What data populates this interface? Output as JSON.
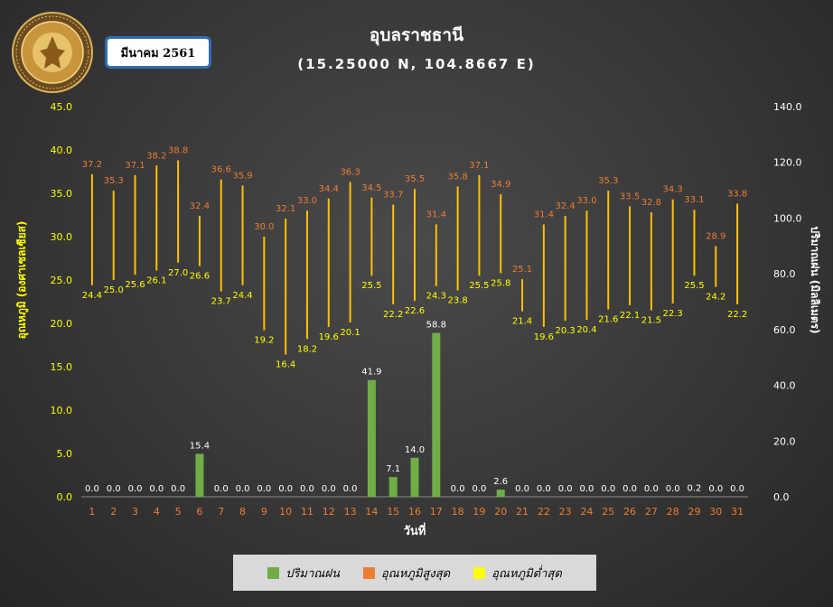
{
  "header": {
    "month_label": "มีนาคม 2561",
    "title": "อุบลราชธานี",
    "subtitle": "(15.25000 N, 104.8667 E)",
    "logo_text": "METEOROLOGICAL DEPARTMENT"
  },
  "colors": {
    "rain": "#70ad47",
    "tmax_label": "#ed7d31",
    "tmin_label": "#ffff00",
    "range_line": "#ffc000",
    "left_axis_text": "#ffff00",
    "right_axis_text": "#ffffff",
    "day_label": "#ed7d31"
  },
  "chart_data": {
    "type": "bar",
    "xlabel": "วันที่",
    "ylabel_left": "อุณหภูมิ (องศาเซลเซียส)",
    "ylabel_right": "ปริมาณฝน (มิลลิเมตร)",
    "ylim_left": [
      0,
      45
    ],
    "ylim_right": [
      0,
      140
    ],
    "yticks_left": [
      "0.0",
      "5.0",
      "10.0",
      "15.0",
      "20.0",
      "25.0",
      "30.0",
      "35.0",
      "40.0",
      "45.0"
    ],
    "yticks_right": [
      "0.0",
      "20.0",
      "40.0",
      "60.0",
      "80.0",
      "100.0",
      "120.0",
      "140.0"
    ],
    "grid": false,
    "legend_position": "bottom",
    "categories": [
      "1",
      "2",
      "3",
      "4",
      "5",
      "6",
      "7",
      "8",
      "9",
      "10",
      "11",
      "12",
      "13",
      "14",
      "15",
      "16",
      "17",
      "18",
      "19",
      "20",
      "21",
      "22",
      "23",
      "24",
      "25",
      "26",
      "27",
      "28",
      "29",
      "30",
      "31"
    ],
    "series": [
      {
        "name": "ปริมาณฝน",
        "axis": "right",
        "values": [
          0.0,
          0.0,
          0.0,
          0.0,
          0.0,
          15.4,
          0.0,
          0.0,
          0.0,
          0.0,
          0.0,
          0.0,
          0.0,
          41.9,
          7.1,
          14.0,
          58.8,
          0.0,
          0.0,
          2.6,
          0.0,
          0.0,
          0.0,
          0.0,
          0.0,
          0.0,
          0.0,
          0.0,
          0.2,
          0.0,
          0.0
        ]
      },
      {
        "name": "อุณหภูมิสูงสุด",
        "axis": "left",
        "values": [
          37.2,
          35.3,
          37.1,
          38.2,
          38.8,
          32.4,
          36.6,
          35.9,
          30.0,
          32.1,
          33.0,
          34.4,
          36.3,
          34.5,
          33.7,
          35.5,
          31.4,
          35.8,
          37.1,
          34.9,
          25.1,
          31.4,
          32.4,
          33.0,
          35.3,
          33.5,
          32.8,
          34.3,
          33.1,
          28.9,
          33.8
        ]
      },
      {
        "name": "อุณหภูมิต่ำสุด",
        "axis": "left",
        "values": [
          24.4,
          25.0,
          25.6,
          26.1,
          27.0,
          26.6,
          23.7,
          24.4,
          19.2,
          16.4,
          18.2,
          19.6,
          20.1,
          25.5,
          22.2,
          22.6,
          24.3,
          23.8,
          25.5,
          25.8,
          21.4,
          19.6,
          20.3,
          20.4,
          21.6,
          22.1,
          21.5,
          22.3,
          25.5,
          24.2,
          22.2
        ]
      }
    ]
  }
}
